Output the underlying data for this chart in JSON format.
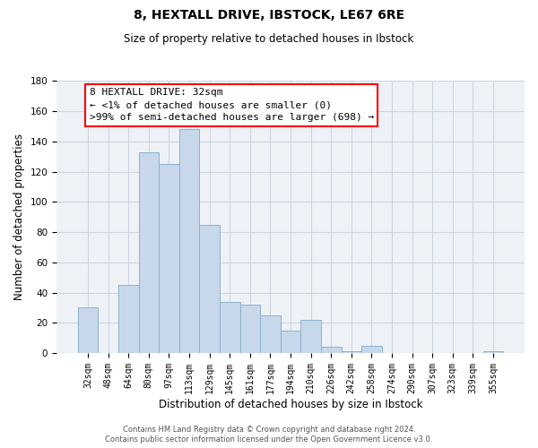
{
  "title": "8, HEXTALL DRIVE, IBSTOCK, LE67 6RE",
  "subtitle": "Size of property relative to detached houses in Ibstock",
  "xlabel": "Distribution of detached houses by size in Ibstock",
  "ylabel": "Number of detached properties",
  "bar_color": "#c8d8eb",
  "bar_edge_color": "#8ab0cc",
  "background_color": "#eef2f7",
  "categories": [
    "32sqm",
    "48sqm",
    "64sqm",
    "80sqm",
    "97sqm",
    "113sqm",
    "129sqm",
    "145sqm",
    "161sqm",
    "177sqm",
    "194sqm",
    "210sqm",
    "226sqm",
    "242sqm",
    "258sqm",
    "274sqm",
    "290sqm",
    "307sqm",
    "323sqm",
    "339sqm",
    "355sqm"
  ],
  "values": [
    30,
    0,
    45,
    133,
    125,
    148,
    85,
    34,
    32,
    25,
    15,
    22,
    4,
    1,
    5,
    0,
    0,
    0,
    0,
    0,
    1
  ],
  "ylim": [
    0,
    180
  ],
  "yticks": [
    0,
    20,
    40,
    60,
    80,
    100,
    120,
    140,
    160,
    180
  ],
  "annotation_line1": "8 HEXTALL DRIVE: 32sqm",
  "annotation_line2": "← <1% of detached houses are smaller (0)",
  "annotation_line3": ">99% of semi-detached houses are larger (698) →",
  "footer1": "Contains HM Land Registry data © Crown copyright and database right 2024.",
  "footer2": "Contains public sector information licensed under the Open Government Licence v3.0.",
  "grid_color": "#cdd5e0",
  "title_fontsize": 10,
  "subtitle_fontsize": 8.5,
  "ylabel_fontsize": 8.5,
  "xlabel_fontsize": 8.5,
  "tick_fontsize": 7,
  "ann_fontsize": 8,
  "footer_fontsize": 6
}
